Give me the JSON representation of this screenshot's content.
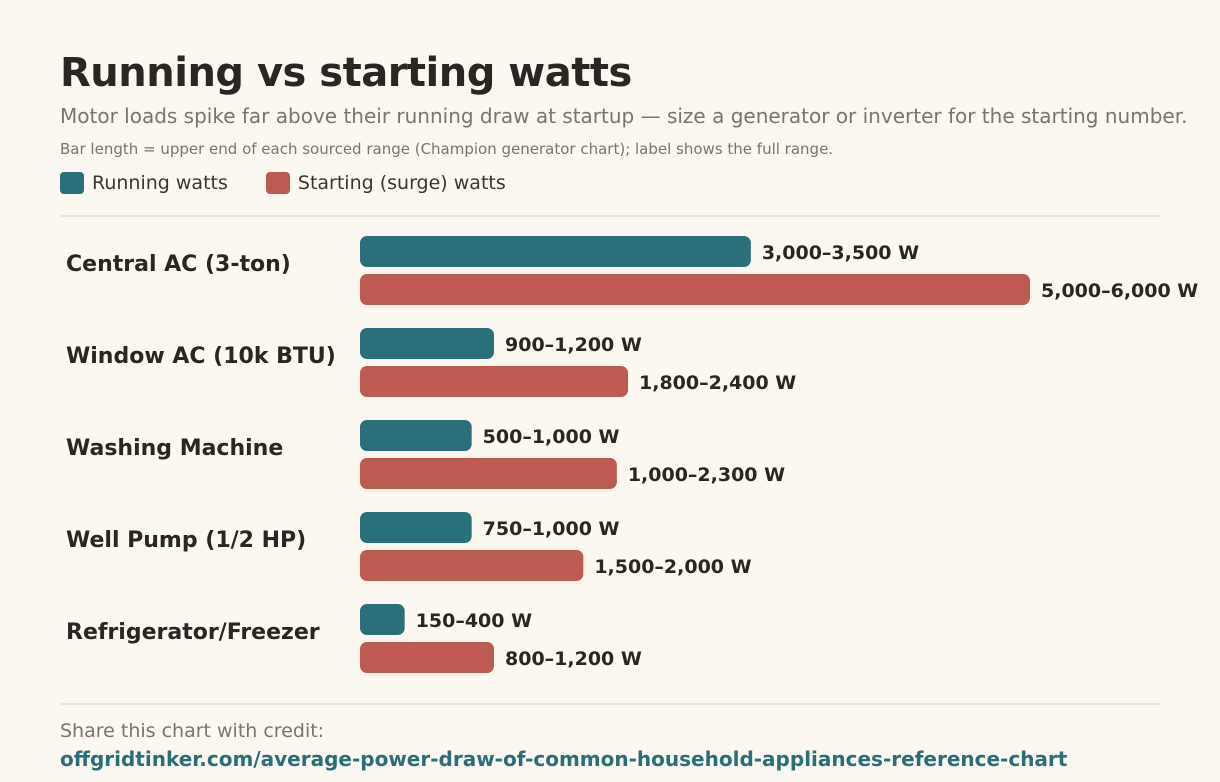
{
  "header": {
    "title": "Running vs starting watts",
    "subtitle": "Motor loads spike far above their running draw at startup — size a generator or inverter for the starting number.",
    "note": "Bar length = upper end of each sourced range (Champion generator chart); label shows the full range."
  },
  "legend": {
    "running_label": "Running watts",
    "starting_label": "Starting (surge) watts"
  },
  "colors": {
    "running": "#2a6f79",
    "starting": "#bd5a51"
  },
  "chart_data": {
    "type": "bar",
    "orientation": "horizontal",
    "xlim": [
      0,
      6000
    ],
    "grid": false,
    "legend_position": "top-left",
    "categories": [
      "Central AC (3-ton)",
      "Window AC (10k BTU)",
      "Washing Machine",
      "Well Pump (1/2 HP)",
      "Refrigerator/Freezer"
    ],
    "series": [
      {
        "name": "Running watts",
        "values": [
          3500,
          1200,
          1000,
          1000,
          400
        ],
        "labels": [
          "3,000–3,500 W",
          "900–1,200 W",
          "500–1,000 W",
          "750–1,000 W",
          "150–400 W"
        ]
      },
      {
        "name": "Starting (surge) watts",
        "values": [
          6000,
          2400,
          2300,
          2000,
          1200
        ],
        "labels": [
          "5,000–6,000 W",
          "1,800–2,400 W",
          "1,000–2,300 W",
          "1,500–2,000 W",
          "800–1,200 W"
        ]
      }
    ]
  },
  "footer": {
    "credit_label": "Share this chart with credit:",
    "link_text": "offgridtinker.com/average-power-draw-of-common-household-appliances-reference-chart"
  }
}
